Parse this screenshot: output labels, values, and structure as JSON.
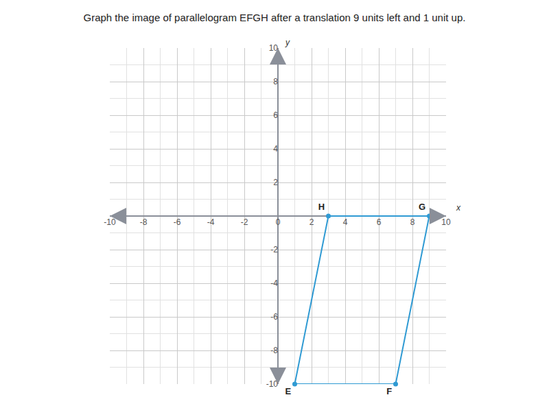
{
  "chart_data": {
    "type": "polygon",
    "title": "Graph the image of parallelogram EFGH after a translation 9 units left and 1 unit up.",
    "x_label": "x",
    "y_label": "y",
    "xlim": [
      -10,
      10
    ],
    "ylim": [
      -10,
      10
    ],
    "xticks": [
      -10,
      -8,
      -6,
      -4,
      -2,
      0,
      2,
      4,
      6,
      8,
      10
    ],
    "yticks": [
      -10,
      -8,
      -6,
      -4,
      -2,
      2,
      4,
      6,
      8,
      10
    ],
    "grid": true,
    "series": [
      {
        "name": "EFGH",
        "color": "#2f9ad3",
        "marker": "circle",
        "labels": [
          "E",
          "F",
          "G",
          "H"
        ],
        "x": [
          1,
          7,
          9,
          3
        ],
        "y": [
          -10,
          -10,
          0,
          0
        ]
      }
    ]
  }
}
